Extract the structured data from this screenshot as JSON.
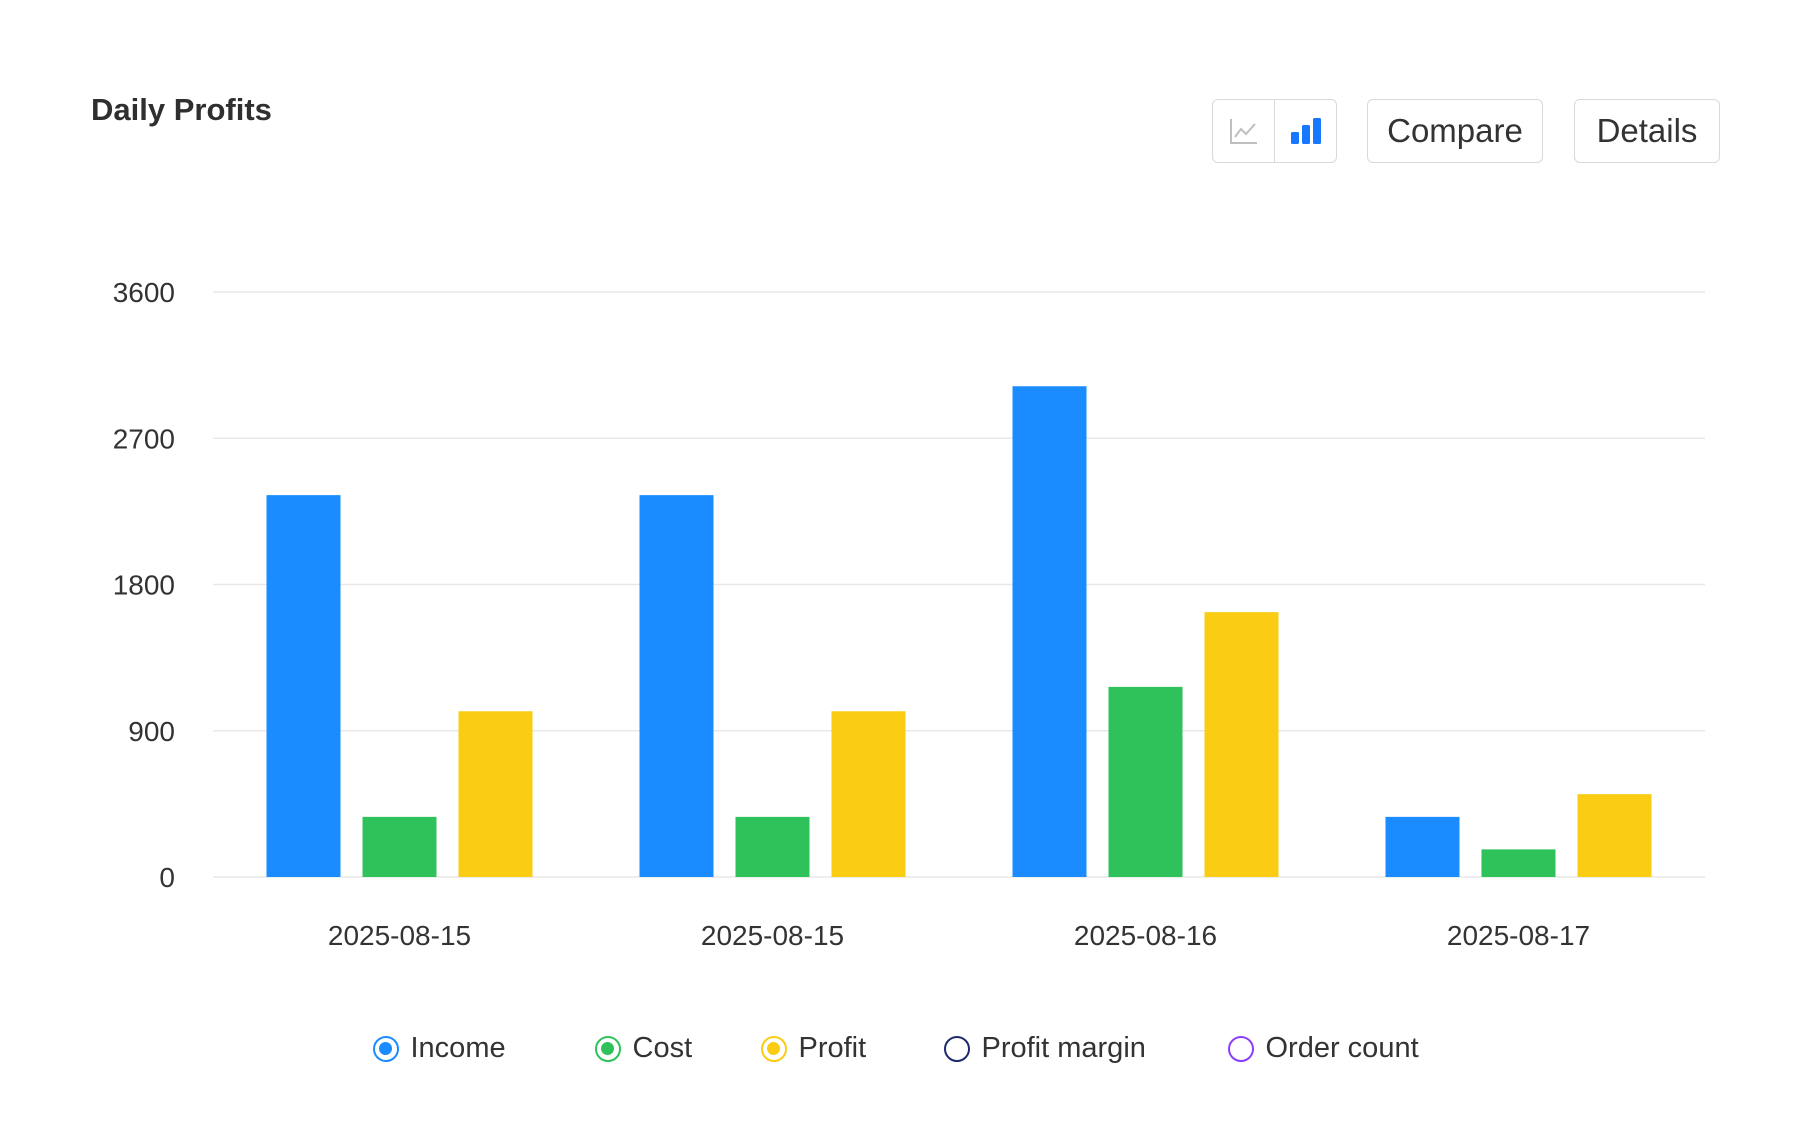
{
  "header": {
    "title": "Daily Profits",
    "line_toggle_icon": "line-chart-icon",
    "bar_toggle_icon": "bar-chart-icon",
    "compare_label": "Compare",
    "details_label": "Details"
  },
  "colors": {
    "income": "#1a8cff",
    "cost": "#2fc25b",
    "profit": "#facc14",
    "profit_margin": "#1d2b6b",
    "order_count": "#8a3ffc",
    "grid": "#e8e8e8",
    "active_toggle": "#1677ff",
    "inactive_toggle": "#bfbfbf"
  },
  "chart_data": {
    "type": "bar",
    "title": "Daily Profits",
    "categories": [
      "2025-08-15",
      "2025-08-15",
      "2025-08-16",
      "2025-08-17"
    ],
    "series": [
      {
        "name": "Income",
        "values": [
          2350,
          2350,
          3020,
          370
        ]
      },
      {
        "name": "Cost",
        "values": [
          370,
          370,
          1170,
          170
        ]
      },
      {
        "name": "Profit",
        "values": [
          1020,
          1020,
          1630,
          510
        ]
      }
    ],
    "legend": [
      "Income",
      "Cost",
      "Profit",
      "Profit margin",
      "Order count"
    ],
    "ylim": [
      0,
      3600
    ],
    "yticks": [
      "0",
      "900",
      "1800",
      "2700",
      "3600"
    ],
    "grid": true,
    "legend_position": "bottom"
  }
}
